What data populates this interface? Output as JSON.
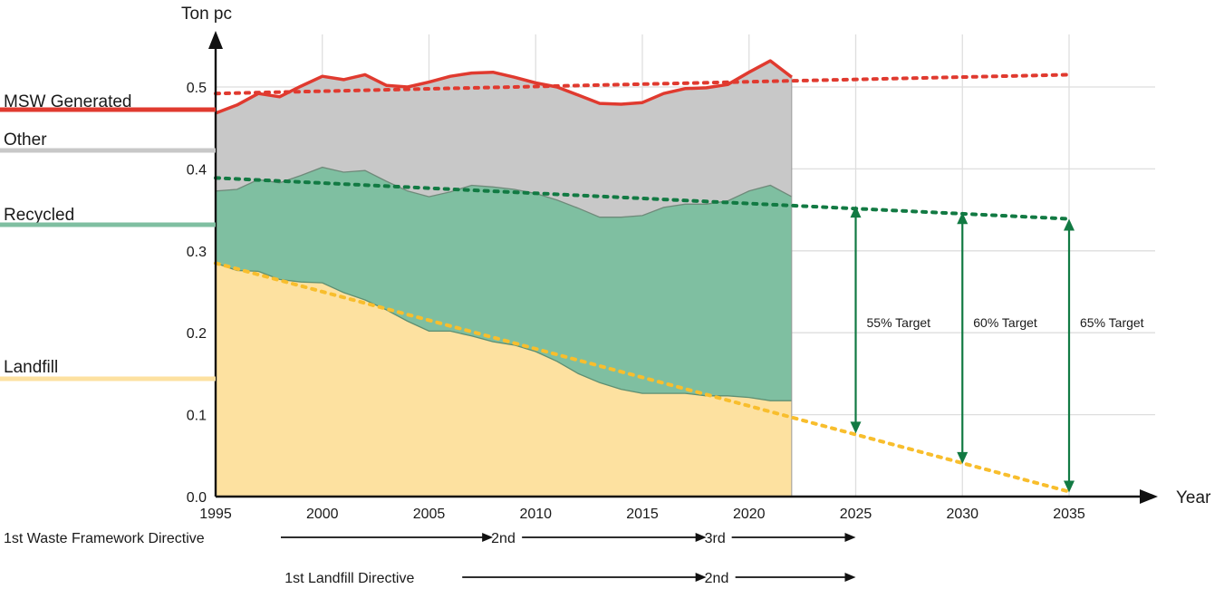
{
  "chart_data": {
    "type": "area",
    "ylabel": "Ton pc",
    "xlabel": "Year",
    "xlim": [
      1995,
      2035
    ],
    "ylim": [
      0,
      0.5
    ],
    "x_ticks": [
      "1995",
      "2000",
      "2005",
      "2010",
      "2015",
      "2020",
      "2025",
      "2030",
      "2035"
    ],
    "y_ticks": [
      "0.0",
      "0.1",
      "0.2",
      "0.3",
      "0.4",
      "0.5"
    ],
    "grid": true,
    "legend": "left",
    "colors": {
      "msw": "#e03a2f",
      "other": "#c8c8c8",
      "recycled": "#7fbfa1",
      "landfill": "#fde1a0",
      "landfill_line": "#f8be2d",
      "trend_recycled": "#127a43",
      "target_arrow": "#127a43",
      "axis": "#111111"
    },
    "series": [
      {
        "name": "MSW Generated",
        "x": [
          1995,
          1996,
          1997,
          1998,
          1999,
          2000,
          2001,
          2002,
          2003,
          2004,
          2005,
          2006,
          2007,
          2008,
          2009,
          2010,
          2011,
          2012,
          2013,
          2014,
          2015,
          2016,
          2017,
          2018,
          2019,
          2020,
          2021,
          2022
        ],
        "values": [
          0.468,
          0.478,
          0.492,
          0.488,
          0.501,
          0.513,
          0.509,
          0.515,
          0.502,
          0.5,
          0.506,
          0.513,
          0.517,
          0.518,
          0.512,
          0.505,
          0.5,
          0.49,
          0.48,
          0.479,
          0.481,
          0.492,
          0.498,
          0.499,
          0.503,
          0.518,
          0.532,
          0.512
        ]
      },
      {
        "name": "Recycled",
        "x": [
          1995,
          1996,
          1997,
          1998,
          1999,
          2000,
          2001,
          2002,
          2003,
          2004,
          2005,
          2006,
          2007,
          2008,
          2009,
          2010,
          2011,
          2012,
          2013,
          2014,
          2015,
          2016,
          2017,
          2018,
          2019,
          2020,
          2021,
          2022
        ],
        "values": [
          0.373,
          0.375,
          0.387,
          0.383,
          0.392,
          0.402,
          0.396,
          0.398,
          0.385,
          0.373,
          0.366,
          0.372,
          0.38,
          0.378,
          0.375,
          0.37,
          0.362,
          0.352,
          0.341,
          0.341,
          0.343,
          0.353,
          0.357,
          0.357,
          0.361,
          0.373,
          0.38,
          0.366
        ]
      },
      {
        "name": "Landfill",
        "x": [
          1995,
          1996,
          1997,
          1998,
          1999,
          2000,
          2001,
          2002,
          2003,
          2004,
          2005,
          2006,
          2007,
          2008,
          2009,
          2010,
          2011,
          2012,
          2013,
          2014,
          2015,
          2016,
          2017,
          2018,
          2019,
          2020,
          2021,
          2022
        ],
        "values": [
          0.285,
          0.276,
          0.275,
          0.265,
          0.262,
          0.261,
          0.249,
          0.24,
          0.228,
          0.214,
          0.202,
          0.202,
          0.196,
          0.189,
          0.185,
          0.177,
          0.165,
          0.15,
          0.139,
          0.131,
          0.126,
          0.126,
          0.126,
          0.123,
          0.123,
          0.121,
          0.117,
          0.117
        ]
      },
      {
        "name": "Other",
        "x": [],
        "values": []
      }
    ],
    "trends": [
      {
        "series": "MSW Generated",
        "x": [
          1995,
          2035
        ],
        "values": [
          0.492,
          0.515
        ]
      },
      {
        "series": "Recycled",
        "x": [
          1995,
          2035
        ],
        "values": [
          0.389,
          0.339
        ]
      },
      {
        "series": "Landfill",
        "x": [
          1995,
          2035
        ],
        "values": [
          0.285,
          0.006
        ]
      }
    ],
    "targets": [
      {
        "label": "55% Target",
        "x": 2025,
        "from": 0.077,
        "to": 0.355
      },
      {
        "label": "60% Target",
        "x": 2030,
        "from": 0.04,
        "to": 0.347
      },
      {
        "label": "65% Target",
        "x": 2035,
        "from": 0.005,
        "to": 0.339
      }
    ],
    "directives": [
      {
        "row": 1,
        "label": "1st Waste Framework Directive",
        "start": 1995,
        "end": 2003,
        "end_x": 2008
      },
      {
        "row": 1,
        "label": "2nd",
        "start": 2008,
        "end": 2008,
        "end_x": 2018
      },
      {
        "row": 1,
        "label": "3rd",
        "start": 2018,
        "end": 2018,
        "end_x": 2025
      },
      {
        "row": 2,
        "label": "1st Landfill Directive",
        "start": 1999,
        "end": 2005,
        "end_x": 2018
      },
      {
        "row": 2,
        "label": "2nd",
        "start": 2018,
        "end": 2018,
        "end_x": 2025
      }
    ]
  }
}
